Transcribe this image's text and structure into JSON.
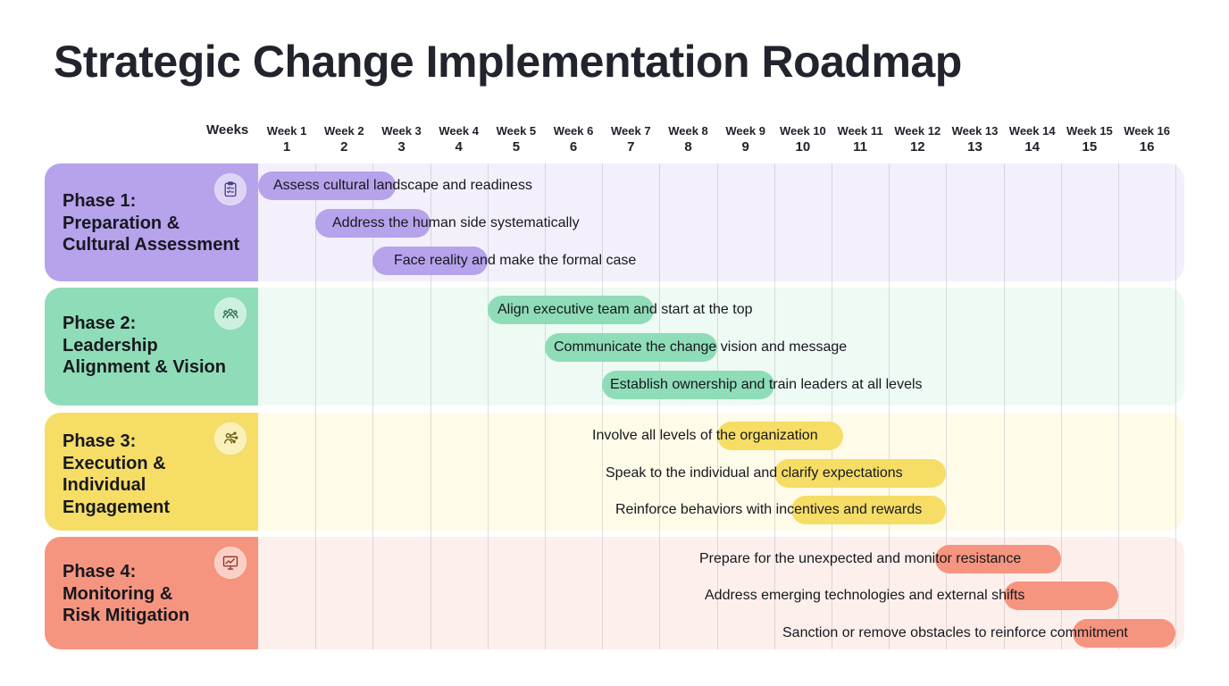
{
  "title": "Strategic Change Implementation Roadmap",
  "chart_data": {
    "type": "gantt",
    "axis_label": "Weeks",
    "weeks": [
      {
        "label": "Week 1",
        "num": "1"
      },
      {
        "label": "Week 2",
        "num": "2"
      },
      {
        "label": "Week 3",
        "num": "3"
      },
      {
        "label": "Week 4",
        "num": "4"
      },
      {
        "label": "Week 5",
        "num": "5"
      },
      {
        "label": "Week 6",
        "num": "6"
      },
      {
        "label": "Week 7",
        "num": "7"
      },
      {
        "label": "Week 8",
        "num": "8"
      },
      {
        "label": "Week 9",
        "num": "9"
      },
      {
        "label": "Week 10",
        "num": "10"
      },
      {
        "label": "Week 11",
        "num": "11"
      },
      {
        "label": "Week 12",
        "num": "12"
      },
      {
        "label": "Week 13",
        "num": "13"
      },
      {
        "label": "Week 14",
        "num": "14"
      },
      {
        "label": "Week 15",
        "num": "15"
      },
      {
        "label": "Week 16",
        "num": "16"
      }
    ],
    "phases": [
      {
        "name": "Phase 1:\nPreparation &\nCultural Assessment",
        "icon": "clipboard-checklist-icon",
        "color": "#b7a2ec",
        "band_color": "#f3f0fc",
        "tasks": [
          {
            "label": "Assess cultural landscape and readiness",
            "start": 1,
            "end": 3.4
          },
          {
            "label": "Address the human side systematically",
            "start": 2,
            "end": 4
          },
          {
            "label": "Face reality and make the formal case",
            "start": 3,
            "end": 5
          }
        ]
      },
      {
        "name": "Phase 2:\nLeadership\nAlignment & Vision",
        "icon": "team-icon",
        "color": "#8fdcb8",
        "band_color": "#eefaf4",
        "tasks": [
          {
            "label": "Align executive team and start at the top",
            "start": 5,
            "end": 7.9
          },
          {
            "label": "Communicate the change vision and message",
            "start": 6,
            "end": 9
          },
          {
            "label": "Establish ownership and train leaders at all levels",
            "start": 7,
            "end": 10
          }
        ]
      },
      {
        "name": "Phase 3:\nExecution &\nIndividual\nEngagement",
        "icon": "person-network-icon",
        "color": "#f5dd66",
        "band_color": "#fefbe8",
        "tasks": [
          {
            "label": "Involve all levels of the organization",
            "start": 9,
            "end": 11.2
          },
          {
            "label": "Speak to the individual and clarify expectations",
            "start": 10,
            "end": 13
          },
          {
            "label": "Reinforce behaviors with incentives and rewards",
            "start": 10.3,
            "end": 13
          }
        ]
      },
      {
        "name": "Phase 4:\nMonitoring &\nRisk Mitigation",
        "icon": "monitor-chart-icon",
        "color": "#f6957f",
        "band_color": "#fdf0ec",
        "tasks": [
          {
            "label": "Prepare for the unexpected and monitor resistance",
            "start": 12.8,
            "end": 15
          },
          {
            "label": "Address emerging technologies and external shifts",
            "start": 14,
            "end": 16
          },
          {
            "label": "Sanction or remove obstacles to reinforce commitment",
            "start": 15.2,
            "end": 17
          }
        ]
      }
    ]
  }
}
